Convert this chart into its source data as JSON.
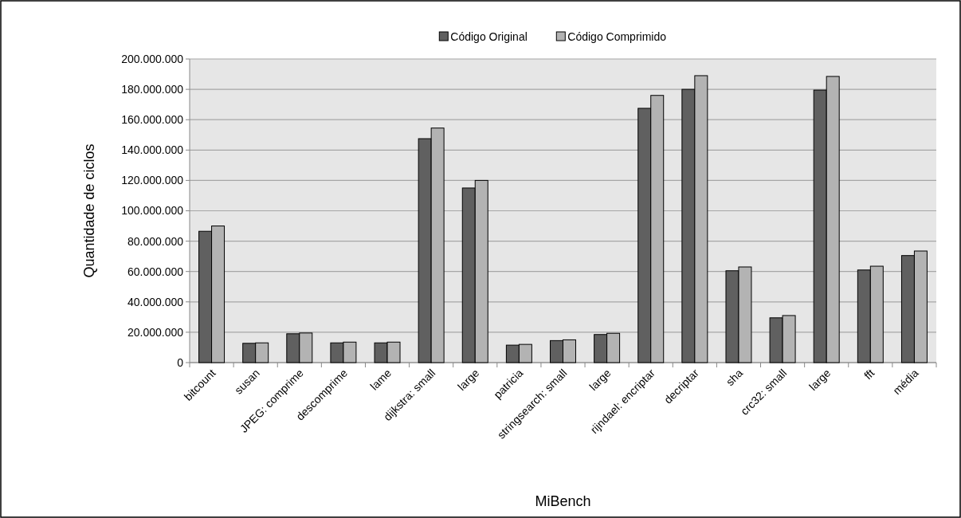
{
  "chart_data": {
    "type": "bar",
    "xlabel": "MiBench",
    "ylabel": "Quantidade de ciclos",
    "categories": [
      "bitcount",
      "susan",
      "JPEG: comprime",
      "descomprime",
      "lame",
      "dijkstra: small",
      "large",
      "patricia",
      "stringsearch: small",
      "large",
      "rijndael: encriptar",
      "decriptar",
      "sha",
      "crc32: small",
      "large",
      "fft",
      "média"
    ],
    "series": [
      {
        "name": "Código Original",
        "color": "#606060",
        "values": [
          86500000,
          12700000,
          19000000,
          13000000,
          13000000,
          147500000,
          115000000,
          11500000,
          14500000,
          18500000,
          167500000,
          180000000,
          60500000,
          29500000,
          179500000,
          61000000,
          70500000
        ]
      },
      {
        "name": "Código Comprimido",
        "color": "#b3b3b3",
        "values": [
          90000000,
          13000000,
          19500000,
          13500000,
          13500000,
          154500000,
          120000000,
          12000000,
          15000000,
          19300000,
          176000000,
          189000000,
          63000000,
          31000000,
          188500000,
          63500000,
          73500000
        ]
      }
    ],
    "ylim": [
      0,
      200000000
    ],
    "yticks": [
      {
        "value": 0,
        "label": "0"
      },
      {
        "value": 20000000,
        "label": "20.000.000"
      },
      {
        "value": 40000000,
        "label": "40.000.000"
      },
      {
        "value": 60000000,
        "label": "60.000.000"
      },
      {
        "value": 80000000,
        "label": "80.000.000"
      },
      {
        "value": 100000000,
        "label": "100.000.000"
      },
      {
        "value": 120000000,
        "label": "120.000.000"
      },
      {
        "value": 140000000,
        "label": "140.000.000"
      },
      {
        "value": 160000000,
        "label": "160.000.000"
      },
      {
        "value": 180000000,
        "label": "180.000.000"
      },
      {
        "value": 200000000,
        "label": "200.000.000"
      }
    ],
    "grid": "y",
    "legend": "top"
  }
}
